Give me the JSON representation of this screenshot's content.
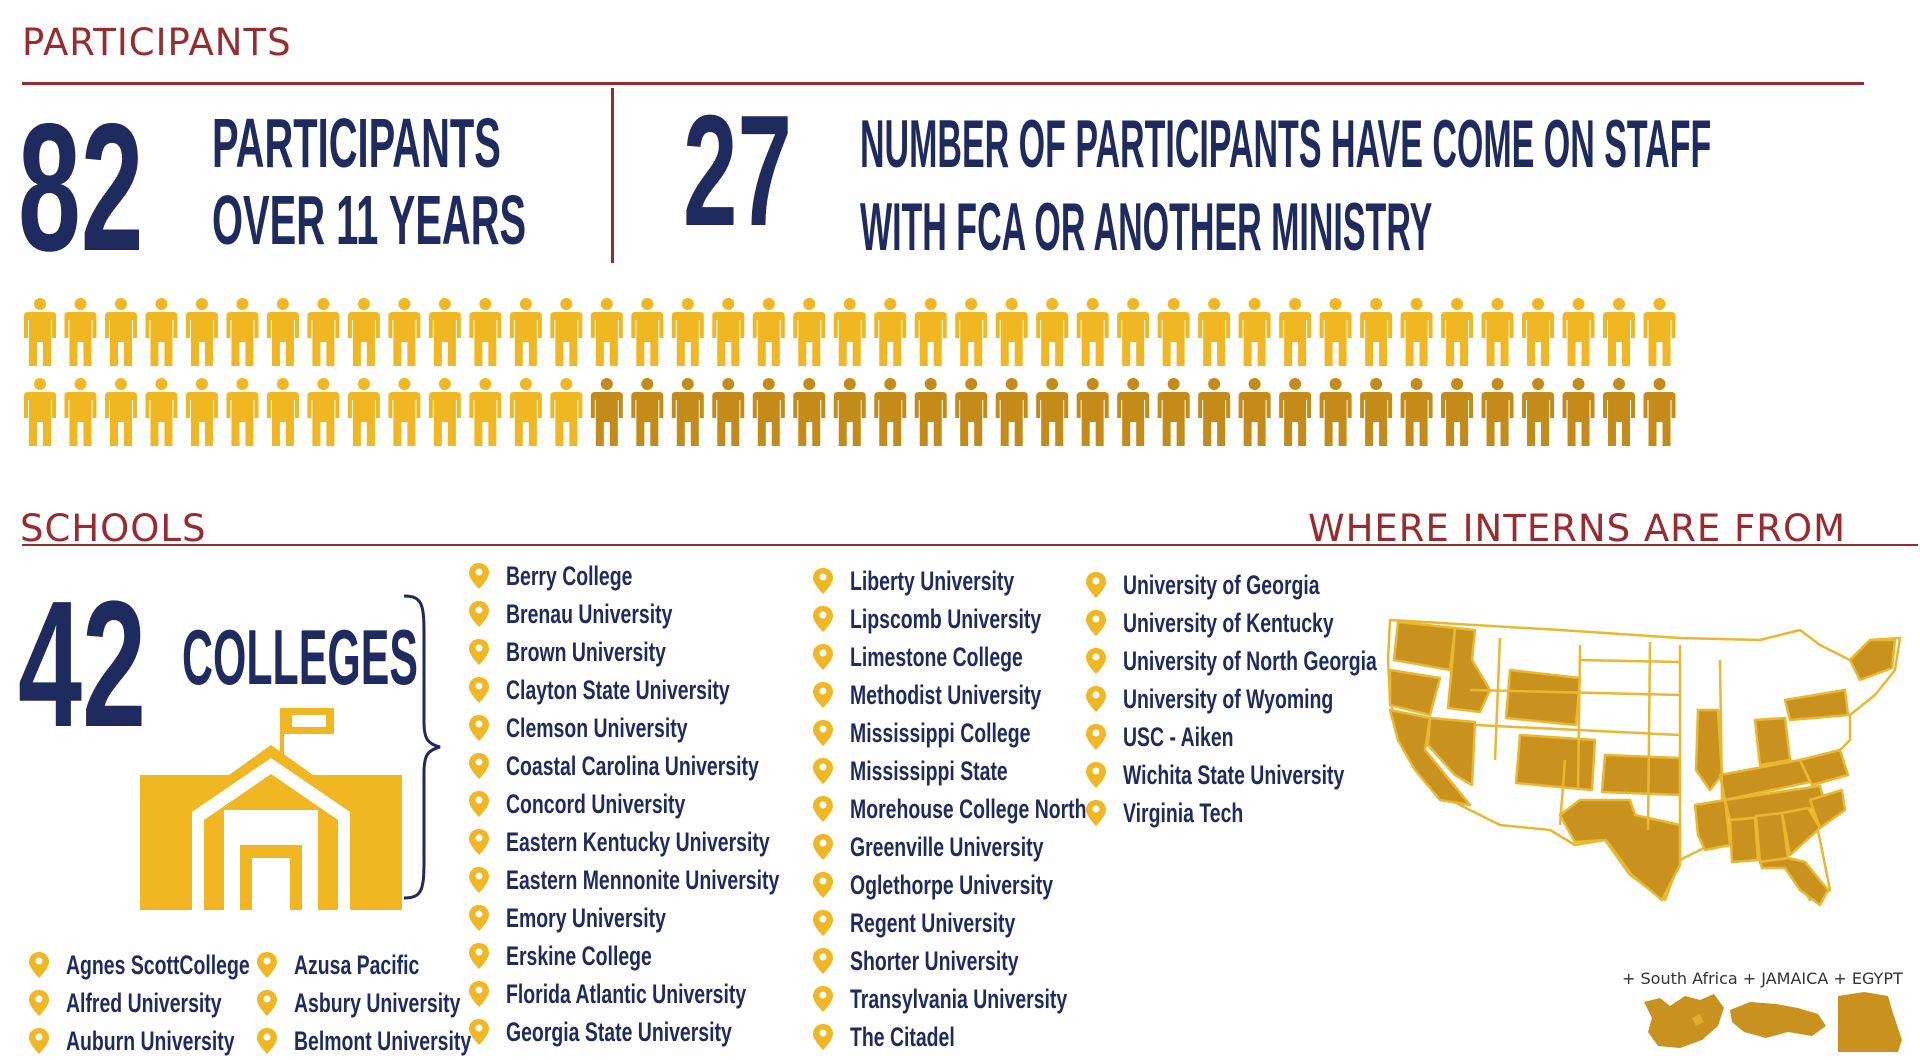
{
  "sections": {
    "participants_title": "PARTICIPANTS",
    "schools_title": "SCHOOLS",
    "where_title": "WHERE INTERNS ARE FROM"
  },
  "stats": {
    "participants_count": "82",
    "participants_line1": "PARTICIPANTS",
    "participants_line2": "OVER 11 YEARS",
    "staff_count": "27",
    "staff_line1": "NUMBER OF PARTICIPANTS HAVE COME ON STAFF",
    "staff_line2": "WITH FCA OR ANOTHER MINISTRY",
    "colleges_count": "42",
    "colleges_label": "COLLEGES"
  },
  "people": {
    "total": 82,
    "highlighted": 27,
    "per_row": 41
  },
  "colors": {
    "navy": "#1f2b5e",
    "red": "#9b2a2f",
    "gold": "#f0b722",
    "dark_gold": "#c48b19",
    "state_fill": "#c9921e"
  },
  "schools": {
    "left_column_a": [
      "Agnes ScottCollege",
      "Alfred University",
      "Auburn University"
    ],
    "left_column_b": [
      "Azusa Pacific",
      "Asbury University",
      "Belmont University"
    ],
    "column_1": [
      "Berry College",
      "Brenau University",
      "Brown University",
      "Clayton State University",
      "Clemson University",
      "Coastal Carolina University",
      "Concord University",
      "Eastern Kentucky University",
      "Eastern Mennonite University",
      "Emory University",
      "Erskine College",
      "Florida Atlantic University",
      "Georgia State University"
    ],
    "column_2": [
      "Liberty University",
      "Lipscomb University",
      "Limestone College",
      "Methodist University",
      "Mississippi College",
      "Mississippi State",
      "Morehouse College North",
      "Greenville University",
      "Oglethorpe University",
      "Regent University",
      "Shorter University",
      "Transylvania University",
      "The Citadel"
    ],
    "column_3": [
      "University of Georgia",
      "University of Kentucky",
      "University of North Georgia",
      "University of Wyoming",
      "USC - Aiken",
      "Wichita State University",
      "Virginia Tech"
    ]
  },
  "map": {
    "icon": "usa-map-icon",
    "countries_label": "+ South Africa + JAMAICA + EGYPT"
  }
}
